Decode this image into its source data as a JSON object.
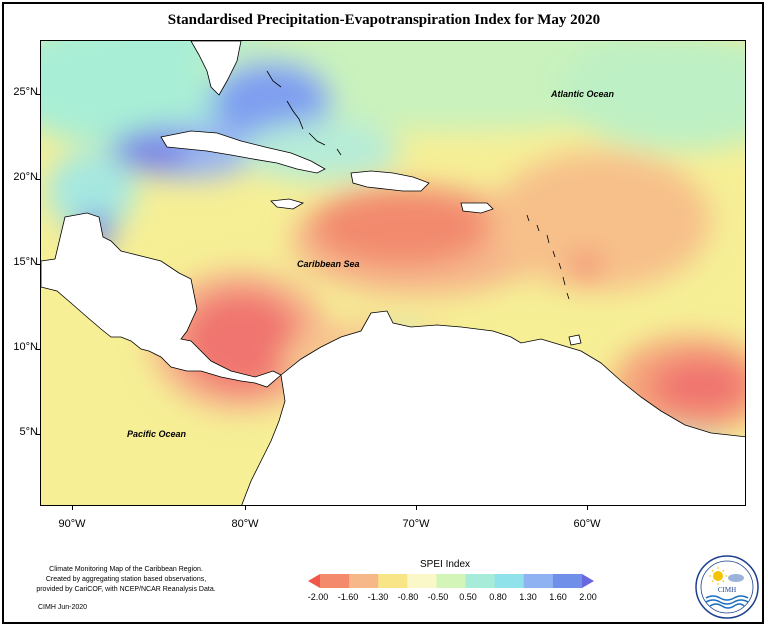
{
  "title": "Standardised Precipitation-Evapotranspiration Index for May 2020",
  "map": {
    "lat_labels": [
      "25°N",
      "20°N",
      "15°N",
      "10°N",
      "5°N"
    ],
    "lon_labels": [
      "90°W",
      "80°W",
      "70°W",
      "60°W"
    ],
    "ocean_labels": {
      "atlantic": "Atlantic Ocean",
      "caribbean": "Caribbean Sea",
      "pacific": "Pacific Ocean"
    }
  },
  "footnote": {
    "line1": "Climate Monitoring Map of the Caribbean Region.",
    "line2": "Created by aggregating station based observations,",
    "line3": "provided by CariCOF, with NCEP/NCAR Reanalysis Data.",
    "date": "CIMH  Jun-2020"
  },
  "legend": {
    "title": "SPEI Index",
    "ticks": [
      "-2.00",
      "-1.60",
      "-1.30",
      "-0.80",
      "-0.50",
      "0.50",
      "0.80",
      "1.30",
      "1.60",
      "2.00"
    ],
    "colors": [
      "#f0564a",
      "#f38a6c",
      "#f7b889",
      "#f8e588",
      "#faf8c8",
      "#d3f5b8",
      "#a7ecd8",
      "#8fe1ea",
      "#8fb3f2",
      "#6f8fe8",
      "#6a68e0"
    ]
  },
  "logo": {
    "text": "CIMH"
  }
}
